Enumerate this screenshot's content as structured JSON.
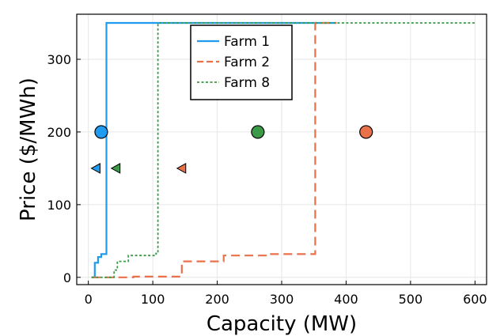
{
  "chart_data": {
    "type": "line",
    "xlabel": "Capacity (MW)",
    "ylabel": "Price ($/MWh)",
    "xlim": [
      -18,
      618
    ],
    "ylim": [
      -10,
      362
    ],
    "xticks": [
      0,
      100,
      200,
      300,
      400,
      500,
      600
    ],
    "yticks": [
      0,
      100,
      200,
      300
    ],
    "grid": true,
    "legend_position": "top-center",
    "series": [
      {
        "name": "Farm 1",
        "color": "#1f9bf0",
        "style": "solid",
        "points": [
          [
            5,
            0
          ],
          [
            10,
            0
          ],
          [
            10,
            20
          ],
          [
            15,
            20
          ],
          [
            15,
            28
          ],
          [
            20,
            28
          ],
          [
            20,
            32
          ],
          [
            28,
            32
          ],
          [
            28,
            350
          ],
          [
            385,
            350
          ]
        ]
      },
      {
        "name": "Farm 2",
        "color": "#e8714a",
        "style": "dashed",
        "points": [
          [
            5,
            0
          ],
          [
            70,
            0
          ],
          [
            70,
            1
          ],
          [
            145,
            1
          ],
          [
            145,
            22
          ],
          [
            210,
            22
          ],
          [
            210,
            30
          ],
          [
            280,
            30
          ],
          [
            280,
            32
          ],
          [
            352,
            32
          ],
          [
            352,
            350
          ],
          [
            385,
            350
          ]
        ]
      },
      {
        "name": "Farm 8",
        "color": "#3a9a47",
        "style": "dotted",
        "points": [
          [
            5,
            0
          ],
          [
            40,
            0
          ],
          [
            40,
            10
          ],
          [
            45,
            10
          ],
          [
            45,
            22
          ],
          [
            62,
            22
          ],
          [
            62,
            30
          ],
          [
            105,
            30
          ],
          [
            105,
            33
          ],
          [
            108,
            33
          ],
          [
            108,
            350
          ],
          [
            600,
            350
          ]
        ]
      }
    ],
    "markers": [
      {
        "series": "Farm 1",
        "shape": "circle",
        "x": 20,
        "y": 200
      },
      {
        "series": "Farm 8",
        "shape": "circle",
        "x": 263,
        "y": 200
      },
      {
        "series": "Farm 2",
        "shape": "circle",
        "x": 431,
        "y": 200
      },
      {
        "series": "Farm 1",
        "shape": "triangle-left",
        "x": 12,
        "y": 150
      },
      {
        "series": "Farm 8",
        "shape": "triangle-left",
        "x": 43,
        "y": 150
      },
      {
        "series": "Farm 2",
        "shape": "triangle-left",
        "x": 145,
        "y": 150
      }
    ]
  }
}
